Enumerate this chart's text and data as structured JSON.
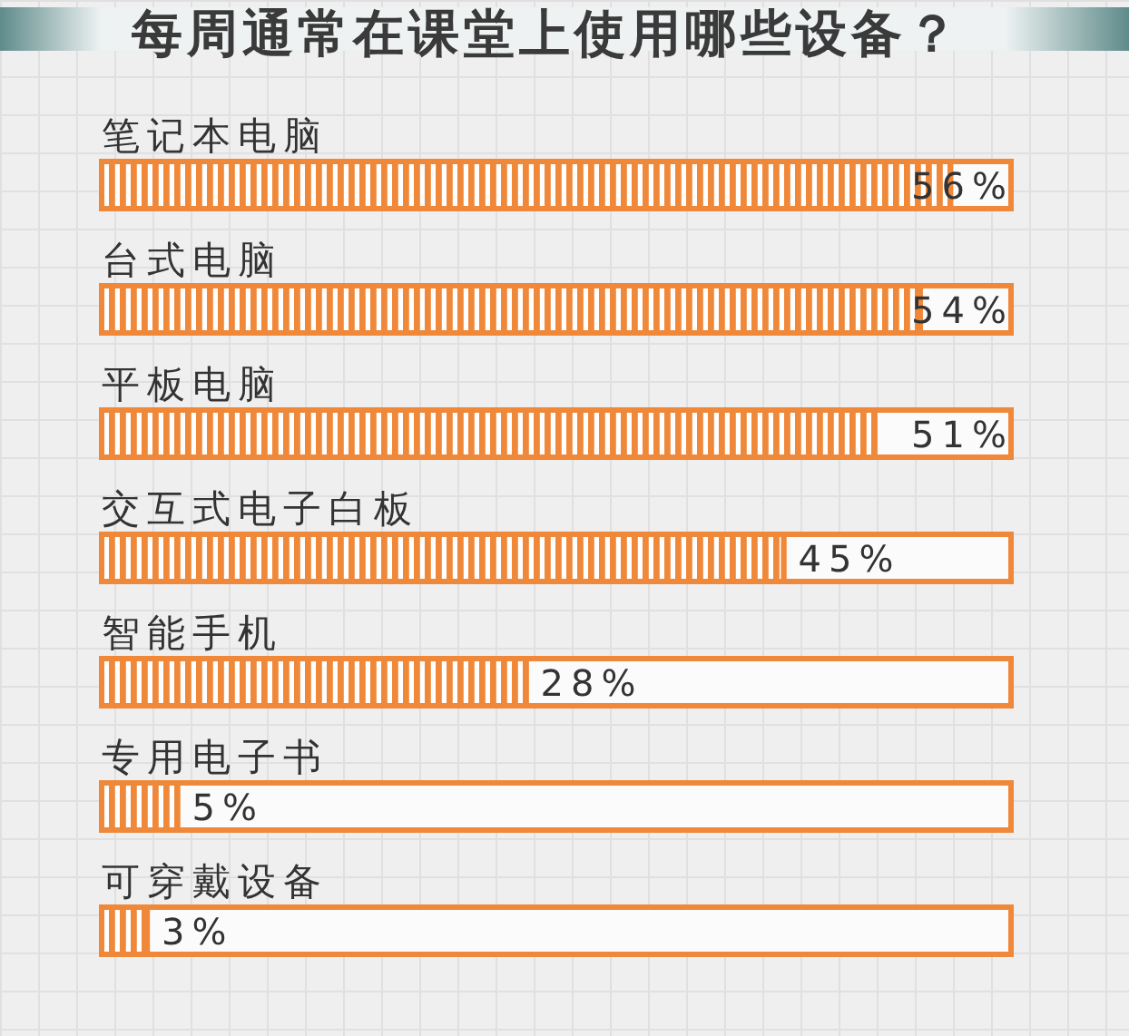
{
  "chart_data": {
    "type": "bar",
    "orientation": "horizontal",
    "title": "每周通常在课堂上使用哪些设备？",
    "categories": [
      "笔记本电脑",
      "台式电脑",
      "平板电脑",
      "交互式电子白板",
      "智能手机",
      "专用电子书",
      "可穿戴设备"
    ],
    "values": [
      56,
      54,
      51,
      45,
      28,
      5,
      3
    ],
    "color": "#f0883a",
    "value_labels": [
      "56%",
      "54%",
      "51%",
      "45%",
      "28%",
      "5%",
      "3%"
    ],
    "xlim": [
      0,
      60
    ]
  }
}
